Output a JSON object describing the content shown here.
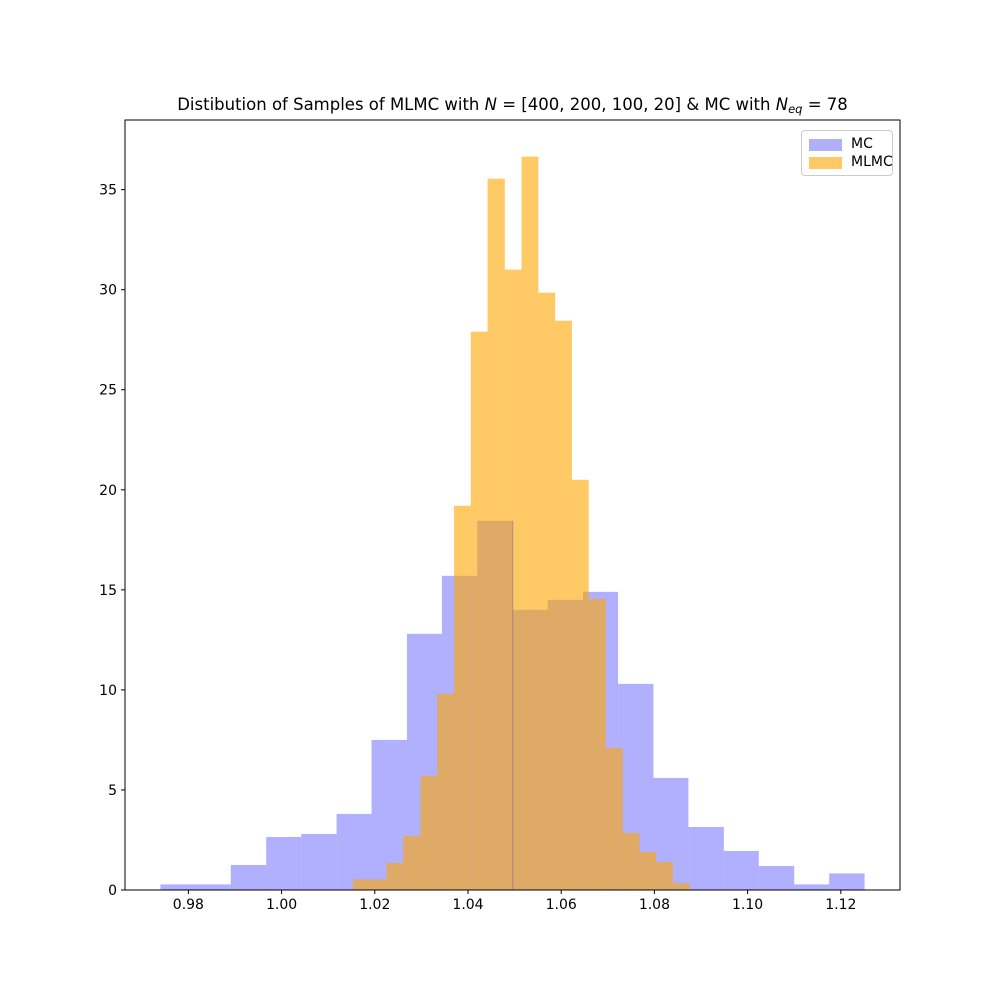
{
  "title": {
    "p1": "Distibution of Samples of MLMC with ",
    "n1": "N",
    "p2": " = [400, 200, 100, 20] & MC with ",
    "n2": "N",
    "sub": "eq",
    "p3": " = 78"
  },
  "legend": {
    "items": [
      {
        "label": "MC"
      },
      {
        "label": "MLMC"
      }
    ]
  },
  "chart_data": {
    "type": "histogram",
    "title": "Distibution of Samples of MLMC with N = [400, 200, 100, 20] & MC with N_eq = 78",
    "xlabel": "",
    "ylabel": "",
    "grid": false,
    "legend_position": "upper right",
    "xlim": [
      0.9664,
      1.1327
    ],
    "ylim": [
      0,
      38.48
    ],
    "xtick_values": [
      0.98,
      1.0,
      1.02,
      1.04,
      1.06,
      1.08,
      1.1,
      1.12
    ],
    "xtick_labels": [
      "0.98",
      "1.00",
      "1.02",
      "1.04",
      "1.06",
      "1.08",
      "1.10",
      "1.12"
    ],
    "ytick_values": [
      0,
      5,
      10,
      15,
      20,
      25,
      30,
      35
    ],
    "ytick_labels": [
      "0",
      "5",
      "10",
      "15",
      "20",
      "25",
      "30",
      "35"
    ],
    "series": [
      {
        "name": "MC",
        "fill_color": "rgba(0,0,255,0.31)",
        "legend_hex": "#b0b0f8",
        "bin_edges": [
          0.974,
          0.9816,
          0.9891,
          0.9967,
          1.0042,
          1.0118,
          1.0193,
          1.0269,
          1.0344,
          1.042,
          1.0496,
          1.0571,
          1.0647,
          1.0722,
          1.0798,
          1.0873,
          1.0949,
          1.1024,
          1.11,
          1.1175,
          1.1251
        ],
        "heights": [
          0.28,
          0.28,
          1.25,
          2.65,
          2.8,
          3.8,
          7.5,
          12.8,
          15.7,
          18.45,
          14.0,
          14.5,
          14.9,
          10.3,
          5.6,
          3.15,
          1.95,
          1.2,
          0.28,
          0.83
        ]
      },
      {
        "name": "MLMC",
        "fill_color": "rgba(255,165,0,0.6)",
        "legend_hex": "#ffc966",
        "bin_edges": [
          1.0153,
          1.0189,
          1.0225,
          1.0261,
          1.0298,
          1.0334,
          1.037,
          1.0406,
          1.0442,
          1.0479,
          1.0515,
          1.0551,
          1.0587,
          1.0623,
          1.0659,
          1.0696,
          1.0732,
          1.0768,
          1.0804,
          1.084,
          1.0876
        ],
        "heights": [
          0.53,
          0.53,
          1.35,
          2.7,
          5.7,
          9.8,
          19.2,
          27.9,
          35.55,
          31.0,
          36.65,
          29.85,
          28.45,
          20.5,
          14.55,
          7.1,
          2.85,
          1.9,
          1.4,
          0.33
        ]
      }
    ]
  }
}
